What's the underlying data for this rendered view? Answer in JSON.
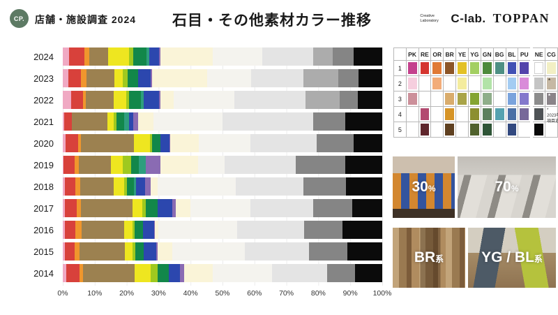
{
  "header": {
    "logo": "CP.",
    "survey": "店舗・施設調査 2024",
    "title": "石目・その他素材カラー推移",
    "brand": {
      "lab_small": "Creative Laboratory",
      "clab": "C-lab.",
      "toppan": "TOPPAN"
    }
  },
  "chart_data": {
    "type": "bar",
    "subtype": "horizontal-stacked",
    "unit": "%",
    "xlim": [
      0,
      100
    ],
    "grid": true,
    "x_ticks": [
      "0%",
      "10%",
      "20%",
      "30%",
      "40%",
      "50%",
      "60%",
      "70%",
      "80%",
      "90%",
      "100%"
    ],
    "categories": [
      "2024",
      "2023",
      "2022",
      "2021",
      "2020",
      "2019",
      "2018",
      "2017",
      "2016",
      "2015",
      "2014"
    ],
    "segment_keys": [
      "PK",
      "RE",
      "OR",
      "BR",
      "YE",
      "YG",
      "GN",
      "BG",
      "BL",
      "PU",
      "CG",
      "WH",
      "LG",
      "MG",
      "DG",
      "BK"
    ],
    "colors": {
      "PK": "#F0A9C3",
      "RE": "#D8413B",
      "OR": "#F0962D",
      "BR": "#9C8150",
      "YE": "#EEE620",
      "YG": "#9FC91F",
      "GN": "#12874A",
      "BG": "#2E9E7E",
      "BL": "#2C47AE",
      "PU": "#8A6BB3",
      "CG": "#FAF4D8",
      "WH": "#F4F3EE",
      "LG": "#E4E4E4",
      "MG": "#ACACAC",
      "DG": "#858585",
      "BK": "#0B0B0B"
    },
    "series": [
      {
        "year": "2024",
        "segments": [
          [
            "PK",
            2
          ],
          [
            "RE",
            4.8
          ],
          [
            "OR",
            1.4
          ],
          [
            "BR",
            6
          ],
          [
            "YE",
            6.5
          ],
          [
            "YG",
            1.4
          ],
          [
            "GN",
            4.2
          ],
          [
            "BG",
            0.8
          ],
          [
            "BL",
            3
          ],
          [
            "PU",
            0.4
          ],
          [
            "CG",
            16.5
          ],
          [
            "WH",
            15.5
          ],
          [
            "LG",
            16
          ],
          [
            "MG",
            6
          ],
          [
            "DG",
            6.5
          ],
          [
            "BK",
            9
          ]
        ]
      },
      {
        "year": "2023",
        "segments": [
          [
            "PK",
            1.7
          ],
          [
            "RE",
            4
          ],
          [
            "OR",
            1.8
          ],
          [
            "BR",
            8.6
          ],
          [
            "YE",
            2.7
          ],
          [
            "YG",
            1.5
          ],
          [
            "GN",
            3.4
          ],
          [
            "BL",
            3.8
          ],
          [
            "PU",
            0.5
          ],
          [
            "CG",
            17.3
          ],
          [
            "WH",
            13.6
          ],
          [
            "LG",
            16.5
          ],
          [
            "MG",
            10.8
          ],
          [
            "DG",
            6.5
          ],
          [
            "BK",
            7.3
          ]
        ]
      },
      {
        "year": "2022",
        "segments": [
          [
            "PK",
            2.6
          ],
          [
            "RE",
            3.8
          ],
          [
            "OR",
            0.9
          ],
          [
            "BR",
            8.7
          ],
          [
            "YE",
            3.8
          ],
          [
            "YG",
            1
          ],
          [
            "GN",
            3.6
          ],
          [
            "BG",
            0.9
          ],
          [
            "BL",
            4.8
          ],
          [
            "PU",
            0.4
          ],
          [
            "CG",
            4.3
          ],
          [
            "WH",
            19
          ],
          [
            "LG",
            22.3
          ],
          [
            "MG",
            10.5
          ],
          [
            "DG",
            5.8
          ],
          [
            "BK",
            7.6
          ]
        ]
      },
      {
        "year": "2021",
        "segments": [
          [
            "PK",
            0.5
          ],
          [
            "RE",
            2.4
          ],
          [
            "BR",
            11
          ],
          [
            "YE",
            2.1
          ],
          [
            "YG",
            0.9
          ],
          [
            "GN",
            2.4
          ],
          [
            "BG",
            1.4
          ],
          [
            "BL",
            1.4
          ],
          [
            "PU",
            1.6
          ],
          [
            "CG",
            4.7
          ],
          [
            "WH",
            21.6
          ],
          [
            "LG",
            28.4
          ],
          [
            "DG",
            10
          ],
          [
            "BK",
            11.6
          ]
        ]
      },
      {
        "year": "2020",
        "segments": [
          [
            "PK",
            0.9
          ],
          [
            "RE",
            3.8
          ],
          [
            "OR",
            0.9
          ],
          [
            "BR",
            16.7
          ],
          [
            "YE",
            4.9
          ],
          [
            "YG",
            0.8
          ],
          [
            "GN",
            2.5
          ],
          [
            "BL",
            2.9
          ],
          [
            "PU",
            0.3
          ],
          [
            "CG",
            9
          ],
          [
            "WH",
            16.1
          ],
          [
            "LG",
            20.6
          ],
          [
            "DG",
            11.7
          ],
          [
            "BK",
            8.9
          ]
        ]
      },
      {
        "year": "2019",
        "segments": [
          [
            "PK",
            0.3
          ],
          [
            "RE",
            3.4
          ],
          [
            "OR",
            1.3
          ],
          [
            "BR",
            10.1
          ],
          [
            "YE",
            3.7
          ],
          [
            "YG",
            2.6
          ],
          [
            "GN",
            2.3
          ],
          [
            "BG",
            2.2
          ],
          [
            "PU",
            4.6
          ],
          [
            "CG",
            11.9
          ],
          [
            "WH",
            8.2
          ],
          [
            "LG",
            22.3
          ],
          [
            "DG",
            15.5
          ],
          [
            "BK",
            11.6
          ]
        ]
      },
      {
        "year": "2018",
        "segments": [
          [
            "PK",
            0.6
          ],
          [
            "RE",
            3.3
          ],
          [
            "OR",
            1.5
          ],
          [
            "BR",
            10.6
          ],
          [
            "YE",
            3.3
          ],
          [
            "YG",
            0.8
          ],
          [
            "GN",
            2.2
          ],
          [
            "BG",
            0.6
          ],
          [
            "BL",
            2.9
          ],
          [
            "PU",
            1.7
          ],
          [
            "CG",
            2.3
          ],
          [
            "WH",
            24.4
          ],
          [
            "LG",
            21.1
          ],
          [
            "DG",
            13.4
          ],
          [
            "BK",
            11.3
          ]
        ]
      },
      {
        "year": "2017",
        "segments": [
          [
            "PK",
            0.6
          ],
          [
            "RE",
            3.7
          ],
          [
            "OR",
            1.3
          ],
          [
            "BR",
            16.3
          ],
          [
            "YE",
            3.1
          ],
          [
            "YG",
            0.9
          ],
          [
            "GN",
            3.9
          ],
          [
            "BL",
            4.5
          ],
          [
            "PU",
            1
          ],
          [
            "CG",
            4.6
          ],
          [
            "WH",
            18.9
          ],
          [
            "LG",
            19.5
          ],
          [
            "DG",
            12.4
          ],
          [
            "BK",
            9.3
          ]
        ]
      },
      {
        "year": "2016",
        "segments": [
          [
            "PK",
            0.7
          ],
          [
            "RE",
            3.2
          ],
          [
            "OR",
            2
          ],
          [
            "BR",
            13.4
          ],
          [
            "YE",
            2.6
          ],
          [
            "YG",
            0.7
          ],
          [
            "GN",
            2.5
          ],
          [
            "BL",
            3.5
          ],
          [
            "PU",
            0.3
          ],
          [
            "CG",
            1.1
          ],
          [
            "WH",
            24.6
          ],
          [
            "LG",
            21
          ],
          [
            "DG",
            11.9
          ],
          [
            "BK",
            12.5
          ]
        ]
      },
      {
        "year": "2015",
        "segments": [
          [
            "PK",
            0.6
          ],
          [
            "RE",
            3.1
          ],
          [
            "OR",
            1.5
          ],
          [
            "BR",
            14.3
          ],
          [
            "YE",
            2.4
          ],
          [
            "YG",
            0.9
          ],
          [
            "GN",
            2.5
          ],
          [
            "BL",
            4
          ],
          [
            "PU",
            0.5
          ],
          [
            "CG",
            4.5
          ],
          [
            "WH",
            22.8
          ],
          [
            "LG",
            19.9
          ],
          [
            "DG",
            12.1
          ],
          [
            "BK",
            10.9
          ]
        ]
      },
      {
        "year": "2014",
        "segments": [
          [
            "PK",
            1.1
          ],
          [
            "RE",
            4.1
          ],
          [
            "OR",
            1.2
          ],
          [
            "BR",
            16
          ],
          [
            "YE",
            5.2
          ],
          [
            "YG",
            2
          ],
          [
            "GN",
            3.6
          ],
          [
            "BL",
            3.6
          ],
          [
            "PU",
            1.2
          ],
          [
            "CG",
            8.9
          ],
          [
            "WH",
            18.6
          ],
          [
            "LG",
            17.3
          ],
          [
            "DG",
            8.8
          ],
          [
            "BK",
            8.4
          ]
        ]
      }
    ]
  },
  "palette": {
    "columns": [
      "PK",
      "RE",
      "OR",
      "BR",
      "YE",
      "YG",
      "GN",
      "BG",
      "BL",
      "PU",
      "NE",
      "CG"
    ],
    "row_labels": [
      "1",
      "2",
      "3",
      "4",
      "5"
    ],
    "cells": {
      "PK": [
        "#C4418D",
        "#F6CEDE",
        "#CC909A",
        null,
        null
      ],
      "RE": [
        "#D5352F",
        null,
        null,
        "#B34A70",
        "#5F262C"
      ],
      "OR": [
        "#E07A35",
        "#F2AC79",
        null,
        null,
        null
      ],
      "BR": [
        "#8C5527",
        null,
        "#D9AC6C",
        "#D69427",
        "#5F4020"
      ],
      "YE": [
        "#E3C127",
        "#F4EC9E",
        "#A9A448",
        null,
        null
      ],
      "YG": [
        "#A3CF62",
        null,
        "#85A532",
        "#8C8F2F",
        "#50622D"
      ],
      "GN": [
        "#4D8A3C",
        "#B2E3A8",
        "#8FAE8A",
        "#5C7F5D",
        "#2F5537"
      ],
      "BG": [
        "#4D8F83",
        null,
        null,
        "#55A2B0",
        null
      ],
      "BL": [
        "#4151B4",
        "#A3CCF2",
        "#7AA3DC",
        "#4A6FA5",
        "#32497F"
      ],
      "PU": [
        "#5344AB",
        "#D98BD9",
        "#8378CC",
        "#77699A",
        null
      ],
      "NE": [
        "#FFFFFF",
        "#C4C4C4",
        "#8C8C8C",
        "#4F5356",
        "#0A0A0A"
      ],
      "CG": [
        "#F2EFC4",
        "#C6B8A4",
        "#8A8489",
        null,
        null
      ]
    },
    "asterisk_cells": [
      {
        "col": "CG",
        "row": 2
      },
      {
        "col": "CG",
        "row": 3
      }
    ],
    "note_mark": "*",
    "note_lines": [
      "2023年より",
      "項目追加"
    ]
  },
  "photos": [
    {
      "value": "30",
      "unit": "%"
    },
    {
      "value": "70",
      "unit": "%"
    },
    {
      "value": "BR",
      "unit": "系"
    },
    {
      "value": "YG / BL",
      "unit": "系"
    }
  ]
}
